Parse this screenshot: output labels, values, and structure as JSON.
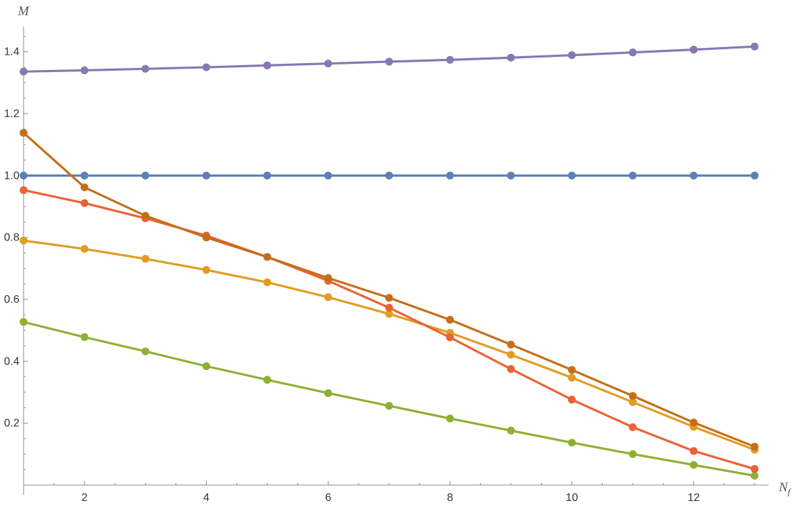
{
  "chart_data": {
    "type": "line",
    "title": "",
    "xlabel": "N",
    "xlabel_sub": "f",
    "ylabel": "M",
    "xlim": [
      1,
      13
    ],
    "ylim": [
      0,
      1.48
    ],
    "x_major_ticks": [
      2,
      4,
      6,
      8,
      10,
      12
    ],
    "y_major_ticks": [
      0.2,
      0.4,
      0.6,
      0.8,
      1.0,
      1.2,
      1.4
    ],
    "x_tick_labels": [
      "2",
      "4",
      "6",
      "8",
      "10",
      "12"
    ],
    "y_tick_labels": [
      "0.2",
      "0.4",
      "0.6",
      "0.8",
      "1.0",
      "1.2",
      "1.4"
    ],
    "grid": false,
    "legend": "none",
    "markers": true,
    "x": [
      1,
      2,
      3,
      4,
      5,
      6,
      7,
      8,
      9,
      10,
      11,
      12,
      13
    ],
    "series": [
      {
        "color": "#5e81b5",
        "values": [
          1.0,
          1.0,
          1.0,
          1.0,
          1.0,
          1.0,
          1.0,
          1.0,
          1.0,
          1.0,
          1.0,
          1.0,
          1.0
        ]
      },
      {
        "color": "#e19c24",
        "values": [
          0.79,
          0.763,
          0.731,
          0.695,
          0.655,
          0.607,
          0.553,
          0.492,
          0.421,
          0.347,
          0.268,
          0.188,
          0.114
        ]
      },
      {
        "color": "#8fb032",
        "values": [
          0.527,
          0.478,
          0.432,
          0.384,
          0.34,
          0.297,
          0.256,
          0.215,
          0.176,
          0.137,
          0.1,
          0.065,
          0.03
        ]
      },
      {
        "color": "#eb6235",
        "values": [
          0.953,
          0.911,
          0.862,
          0.806,
          0.737,
          0.66,
          0.573,
          0.477,
          0.375,
          0.276,
          0.187,
          0.11,
          0.052
        ]
      },
      {
        "color": "#8778b3",
        "values": [
          1.336,
          1.34,
          1.345,
          1.35,
          1.356,
          1.362,
          1.368,
          1.374,
          1.381,
          1.389,
          1.398,
          1.407,
          1.417
        ]
      },
      {
        "color": "#c56e1a",
        "values": [
          1.138,
          0.962,
          0.87,
          0.8,
          0.737,
          0.669,
          0.605,
          0.534,
          0.454,
          0.372,
          0.288,
          0.202,
          0.124
        ]
      }
    ]
  }
}
